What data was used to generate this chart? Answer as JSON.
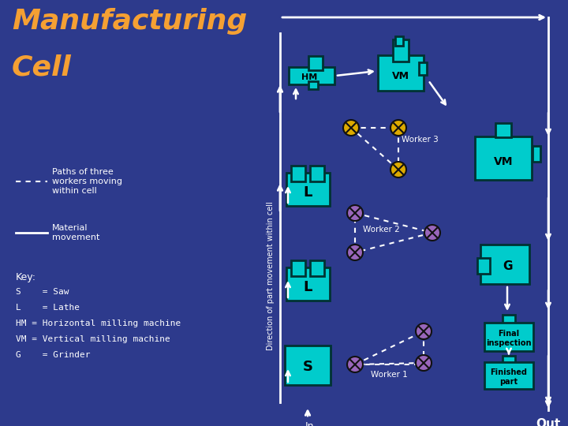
{
  "bg_color": "#2d3a8c",
  "machine_color": "#00cccc",
  "machine_edge": "#003333",
  "machine_dark": "#007777",
  "title_color": "#f5a033",
  "text_color": "#ffffff",
  "worker_color_w1w2": "#cc99cc",
  "worker_color_w3": "#ddaa00",
  "key_items": [
    "S    = Saw",
    "L    = Lathe",
    "HM = Horizontal milling machine",
    "VM = Vertical milling machine",
    "G    = Grinder"
  ]
}
